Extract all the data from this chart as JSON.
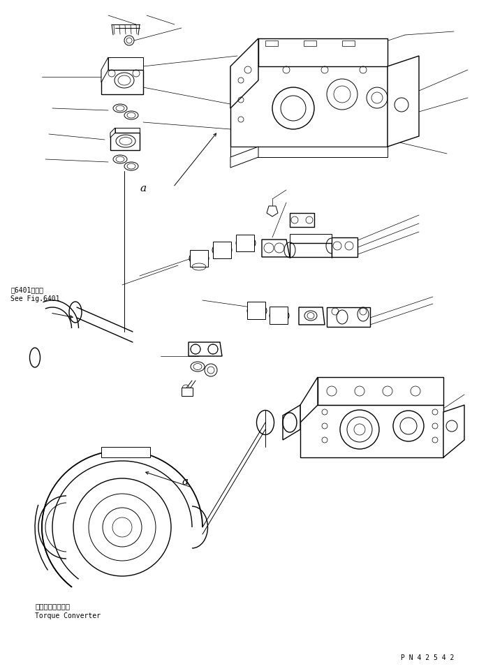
{
  "bg_color": "#ffffff",
  "line_color": "#000000",
  "fig_width": 6.86,
  "fig_height": 9.58,
  "dpi": 100,
  "part_number": "P N 4 2 5 4 2",
  "label_see_fig_jp": "第6401図参照",
  "label_see_fig_en": "See Fig.6401",
  "label_torque_jp": "トルクコンバータ",
  "label_torque_en": "Torque Converter",
  "label_a": "a"
}
